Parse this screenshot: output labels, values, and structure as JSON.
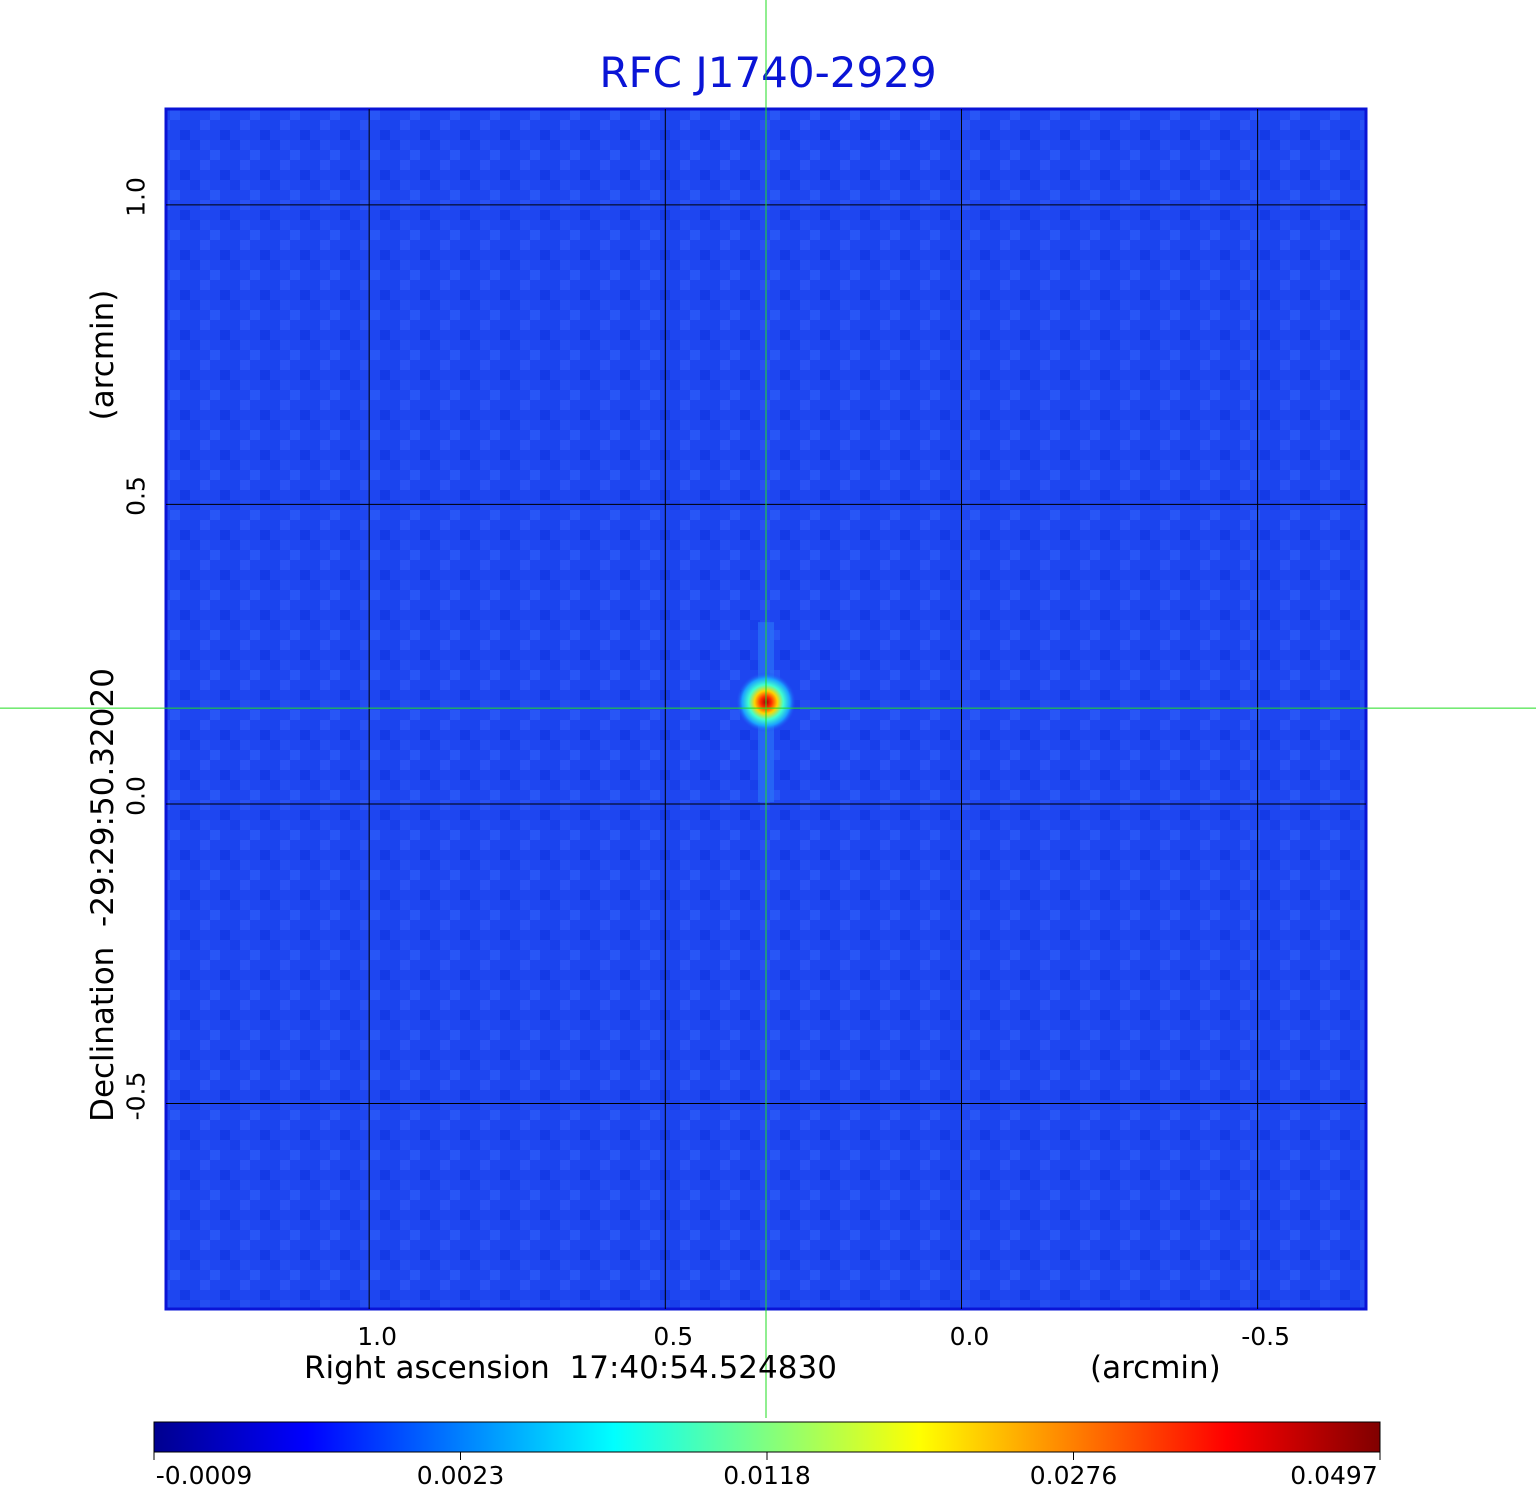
{
  "chart_data": {
    "type": "heatmap",
    "title": "RFC J1740-2929",
    "xlabel_prefix": "Right ascension",
    "xlabel_center": "17:40:54.524830",
    "xlabel_unit": "(arcmin)",
    "ylabel_prefix": "Declination",
    "ylabel_center": "-29:29:50.32020",
    "ylabel_unit": "(arcmin)",
    "x_ticks": [
      "1.0",
      "0.5",
      "0.0",
      "-0.5"
    ],
    "x_tick_values": [
      1.0,
      0.5,
      0.0,
      -0.5
    ],
    "y_ticks": [
      "1.0",
      "0.5",
      "0.0",
      "-0.5"
    ],
    "y_tick_values": [
      1.0,
      0.5,
      0.0,
      -0.5
    ],
    "xlim": [
      1.343,
      -0.683
    ],
    "ylim": [
      -0.843,
      1.16
    ],
    "grid": true,
    "source_offset": {
      "x": 0.33,
      "y": 0.17
    },
    "crosshair_offset": {
      "x": 0.33,
      "y": 0.16
    },
    "colorscale": "jet",
    "colorbar": {
      "ticks": [
        "-0.0009",
        "0.0023",
        "0.0118",
        "0.0276",
        "0.0497"
      ],
      "tick_values": [
        -0.0009,
        0.0023,
        0.0118,
        0.0276,
        0.0497
      ],
      "placement": "bottom"
    },
    "colors": {
      "background_field": "#1e46f0",
      "grid": "#000000",
      "crosshair": "#22dd22",
      "title": "#0a14d6"
    }
  }
}
